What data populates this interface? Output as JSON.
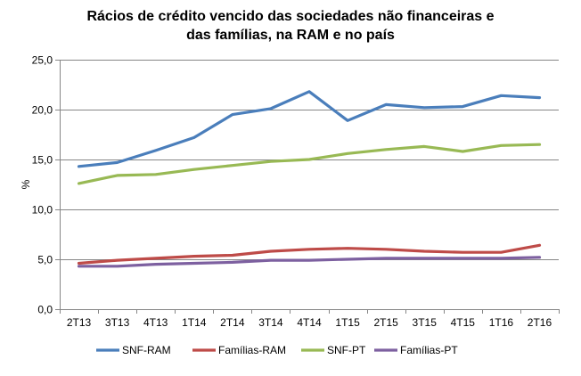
{
  "chart_data": {
    "type": "line",
    "title": [
      "Rácios de crédito vencido  das sociedades  não financeiras  e",
      "das famílias, na RAM e no país"
    ],
    "ylabel": "%",
    "xlabel": "",
    "ylim": [
      0,
      25
    ],
    "yticks": [
      "0,0",
      "5,0",
      "10,0",
      "15,0",
      "20,0",
      "25,0"
    ],
    "ytick_values": [
      0,
      5,
      10,
      15,
      20,
      25
    ],
    "categories": [
      "2T13",
      "3T13",
      "4T13",
      "1T14",
      "2T14",
      "3T14",
      "4T14",
      "1T15",
      "2T15",
      "3T15",
      "4T15",
      "1T16",
      "2T16"
    ],
    "grid": true,
    "legend_position": "bottom",
    "series": [
      {
        "name": "SNF-RAM",
        "color": "#4a7ebb",
        "values": [
          14.3,
          14.7,
          15.9,
          17.2,
          19.5,
          20.1,
          21.8,
          18.9,
          20.5,
          20.2,
          20.3,
          21.4,
          21.2
        ]
      },
      {
        "name": "Famílias-RAM",
        "color": "#be4b48",
        "values": [
          4.6,
          4.9,
          5.1,
          5.3,
          5.4,
          5.8,
          6.0,
          6.1,
          6.0,
          5.8,
          5.7,
          5.7,
          6.4
        ]
      },
      {
        "name": "SNF-PT",
        "color": "#98b954",
        "values": [
          12.6,
          13.4,
          13.5,
          14.0,
          14.4,
          14.8,
          15.0,
          15.6,
          16.0,
          16.3,
          15.8,
          16.4,
          16.5
        ]
      },
      {
        "name": "Famílias-PT",
        "color": "#7d60a0",
        "values": [
          4.3,
          4.3,
          4.5,
          4.6,
          4.7,
          4.9,
          4.9,
          5.0,
          5.1,
          5.1,
          5.1,
          5.1,
          5.2
        ]
      }
    ]
  }
}
